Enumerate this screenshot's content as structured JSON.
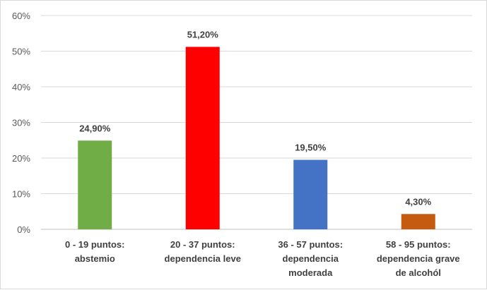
{
  "chart_data": {
    "type": "bar",
    "categories": [
      [
        "0 - 19 puntos:",
        "abstemio"
      ],
      [
        "20 - 37 puntos:",
        "dependencia leve"
      ],
      [
        "36 - 57 puntos:",
        "dependencia",
        "moderada"
      ],
      [
        "58 - 95 puntos:",
        "dependencia grave",
        "de alcohól"
      ]
    ],
    "values": [
      24.9,
      51.2,
      19.5,
      4.3
    ],
    "data_labels": [
      "24,90%",
      "51,20%",
      "19,50%",
      "4,30%"
    ],
    "colors": [
      "#70ad47",
      "#ff0000",
      "#4472c4",
      "#c55a11"
    ],
    "ylim": [
      0,
      60
    ],
    "yticks": [
      "0%",
      "10%",
      "20%",
      "30%",
      "40%",
      "50%",
      "60%"
    ],
    "grid": true,
    "legend": "none"
  }
}
